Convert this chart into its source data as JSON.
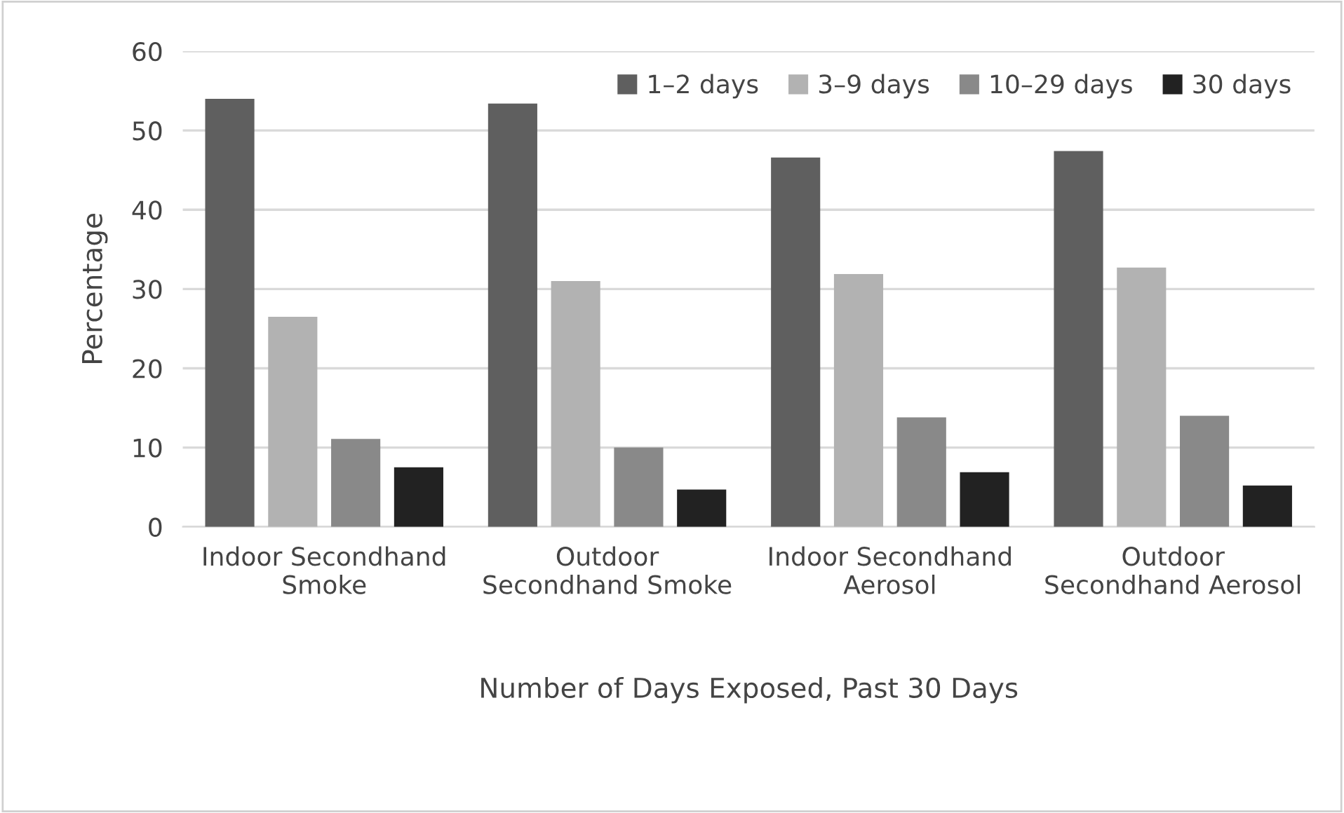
{
  "chart_data": {
    "type": "bar",
    "xlabel": "Number of Days Exposed, Past 30 Days",
    "ylabel": "Percentage",
    "categories": [
      "Indoor Secondhand\nSmoke",
      "Outdoor\nSecondhand Smoke",
      "Indoor Secondhand\nAerosol",
      "Outdoor\nSecondhand Aerosol"
    ],
    "series": [
      {
        "name": "1–2 days",
        "color": "#5f5f5f",
        "values": [
          54.0,
          53.4,
          46.6,
          47.4
        ]
      },
      {
        "name": "3–9 days",
        "color": "#b2b2b2",
        "values": [
          26.5,
          31.0,
          31.9,
          32.7
        ]
      },
      {
        "name": "10–29 days",
        "color": "#898989",
        "values": [
          11.1,
          10.0,
          13.8,
          14.0
        ]
      },
      {
        "name": "30 days",
        "color": "#222222",
        "values": [
          7.5,
          4.7,
          6.9,
          5.2
        ]
      }
    ],
    "ylim": [
      0,
      60
    ],
    "yticks": [
      0,
      10,
      20,
      30,
      40,
      50,
      60
    ],
    "grid": "y",
    "legend": "top right"
  }
}
